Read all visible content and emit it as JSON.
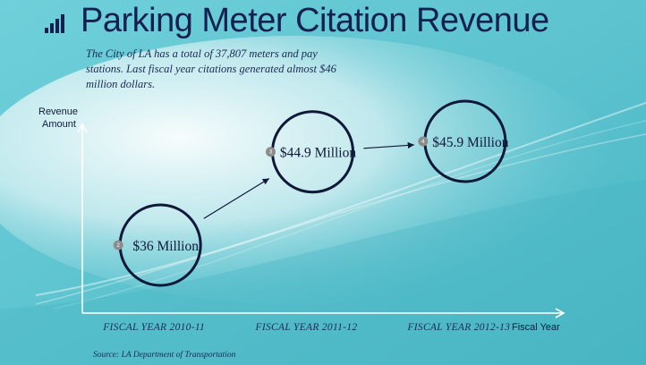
{
  "title": "Parking Meter Citation Revenue",
  "subtitle": "The City of LA has a total of 37,807 meters and pay stations. Last fiscal year citations generated almost $46 million dollars.",
  "source": "Source: LA Department of Transportation",
  "colors": {
    "background": "#5fc4d0",
    "ink": "#14204f",
    "badge": "#8c8c8c"
  },
  "chart_data": {
    "type": "scatter",
    "title": "Parking Meter Citation Revenue",
    "ylabel_lines": [
      "Revenue",
      "Amount"
    ],
    "xlabel": "Fiscal Year",
    "categories": [
      "FISCAL YEAR 2010-11",
      "FISCAL YEAR 2011-12",
      "FISCAL YEAR 2012-13"
    ],
    "values": [
      36,
      44.9,
      45.9
    ],
    "value_labels": [
      "$36 Million",
      "$44.9 Million",
      "$45.9 Million"
    ],
    "badges": [
      "2",
      "3",
      "4"
    ],
    "units": "$ Million",
    "grid": false,
    "legend": "none"
  }
}
